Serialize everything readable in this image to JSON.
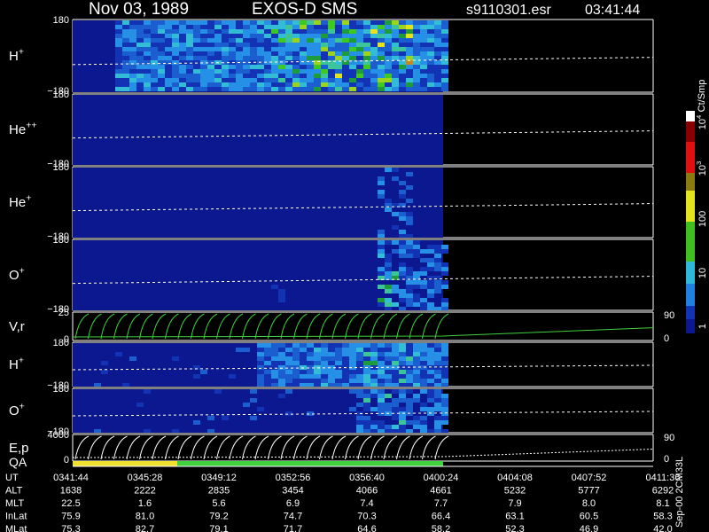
{
  "header": {
    "date": "Nov 03, 1989",
    "instrument": "EXOS-D SMS",
    "file": "s9110301.esr",
    "time": "03:41:44"
  },
  "panels": [
    {
      "label": {
        "base": "H",
        "sup": "+"
      },
      "left_ticks": [
        "180",
        "−180"
      ]
    },
    {
      "label": {
        "base": "He",
        "sup": "++"
      },
      "left_ticks": [
        "180",
        "−180"
      ]
    },
    {
      "label": {
        "base": "He",
        "sup": "+"
      },
      "left_ticks": [
        "180",
        "−180"
      ]
    },
    {
      "label": {
        "base": "O",
        "sup": "+"
      },
      "left_ticks": [
        "180",
        "−180"
      ]
    },
    {
      "label": {
        "base": "V,r"
      },
      "left_ticks": [
        "25",
        "0"
      ],
      "right_ticks": [
        "90",
        "0"
      ]
    },
    {
      "label": {
        "base": "H",
        "sup": "+"
      },
      "left_ticks": [
        "180",
        "−180"
      ]
    },
    {
      "label": {
        "base": "O",
        "sup": "+"
      },
      "left_ticks": [
        "180",
        "−180"
      ]
    },
    {
      "label": {
        "base": "E,p"
      },
      "label2": "QA",
      "left_ticks": [
        "4000",
        "0"
      ],
      "right_ticks": [
        "90",
        "0"
      ]
    }
  ],
  "colorbar": {
    "title": "Ct/Smp",
    "ticks": [
      {
        "base": "10",
        "sup": "4"
      },
      {
        "base": "10",
        "sup": "3"
      },
      {
        "base": "100"
      },
      {
        "base": "10"
      },
      {
        "base": "1"
      }
    ]
  },
  "footer_note": "Sep-00 2CM33L",
  "orbit_table": {
    "rows": [
      {
        "label": "UT",
        "values": [
          "0341:44",
          "0345:28",
          "0349:12",
          "0352:56",
          "0356:40",
          "0400:24",
          "0404:08",
          "0407:52",
          "0411:36"
        ]
      },
      {
        "label": "ALT",
        "values": [
          "1638",
          "2222",
          "2835",
          "3454",
          "4066",
          "4661",
          "5232",
          "5777",
          "6292"
        ]
      },
      {
        "label": "MLT",
        "values": [
          "22.5",
          "1.6",
          "5.6",
          "6.9",
          "7.4",
          "7.7",
          "7.9",
          "8.0",
          "8.1"
        ]
      },
      {
        "label": "InLat",
        "values": [
          "75.9",
          "81.0",
          "79.2",
          "74.7",
          "70.3",
          "66.4",
          "63.1",
          "60.5",
          "58.3"
        ]
      },
      {
        "label": "MLat",
        "values": [
          "75.3",
          "82.7",
          "79.1",
          "71.7",
          "64.6",
          "58.2",
          "52.3",
          "46.9",
          "42.0"
        ]
      }
    ]
  }
}
